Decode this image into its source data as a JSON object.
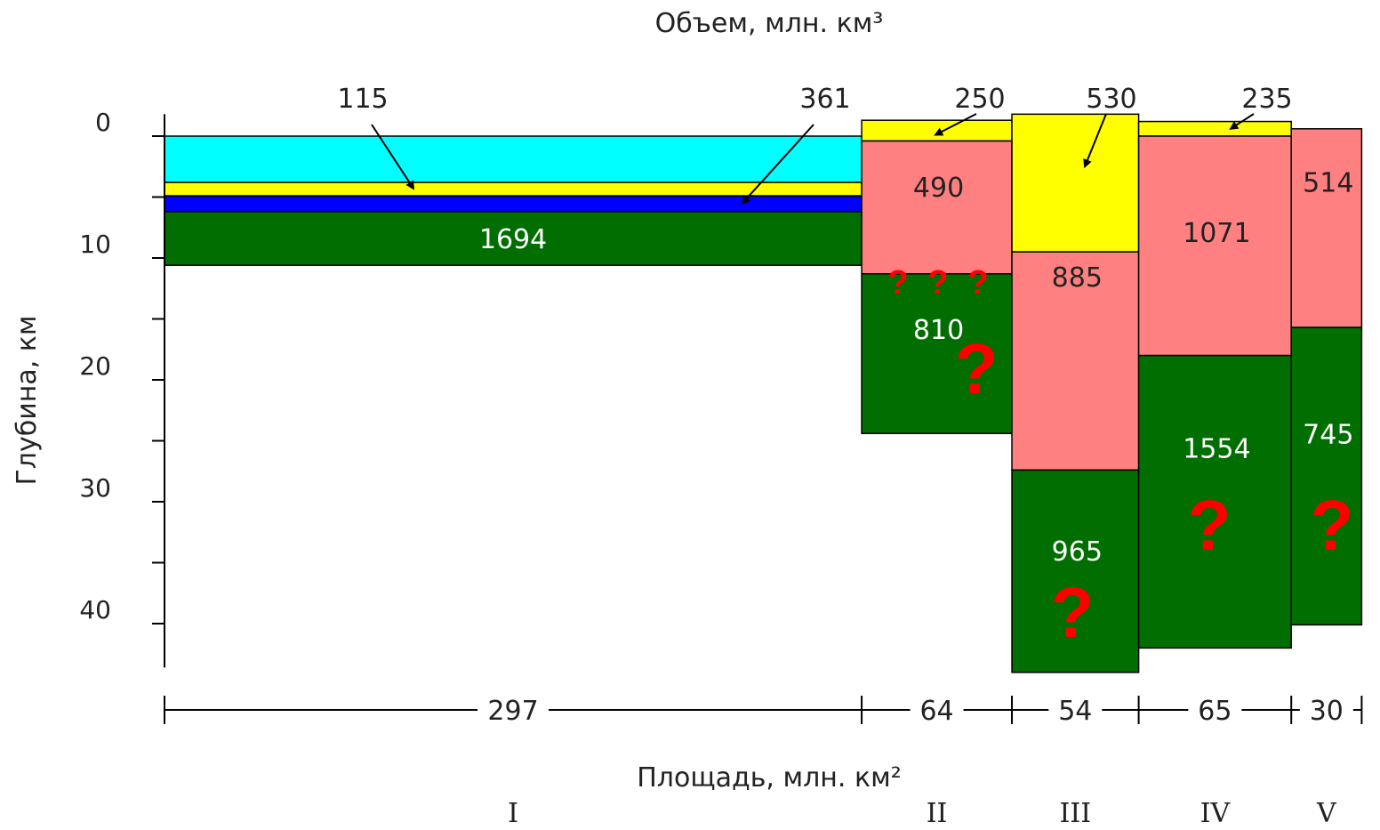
{
  "chart_data": {
    "type": "bar",
    "title": "Объем, млн. км³",
    "xlabel": "Площадь, млн. км²",
    "ylabel": "Глубина, км",
    "ylim": [
      0,
      43
    ],
    "y_ticks": [
      0,
      10,
      20,
      30,
      40
    ],
    "y_minor_ticks": [
      5,
      15,
      25,
      35
    ],
    "columns": [
      {
        "name": "I",
        "width": 297,
        "top": 0,
        "layers": [
          {
            "from": 0,
            "to": 3.8,
            "color": "#00ffff",
            "volume": ""
          },
          {
            "from": 3.8,
            "to": 4.9,
            "color": "#ffff00",
            "volume": "115"
          },
          {
            "from": 4.9,
            "to": 6.2,
            "color": "#0000ff",
            "volume": "361"
          },
          {
            "from": 6.2,
            "to": 10.6,
            "color": "#006e00",
            "volume": "1694"
          }
        ]
      },
      {
        "name": "II",
        "width": 64,
        "top": -1.3,
        "layers": [
          {
            "from": -1.3,
            "to": 0.4,
            "color": "#ffff00",
            "volume": "250"
          },
          {
            "from": 0.4,
            "to": 11.3,
            "color": "#ff8080",
            "volume": "490"
          },
          {
            "from": 11.3,
            "to": 24.4,
            "color": "#006e00",
            "volume": "810"
          }
        ]
      },
      {
        "name": "III",
        "width": 54,
        "top": -1.8,
        "layers": [
          {
            "from": -1.8,
            "to": 9.5,
            "color": "#ffff00",
            "volume": "530"
          },
          {
            "from": 9.5,
            "to": 27.4,
            "color": "#ff8080",
            "volume": "885"
          },
          {
            "from": 27.4,
            "to": 44.0,
            "color": "#006e00",
            "volume": "965"
          }
        ]
      },
      {
        "name": "IV",
        "width": 65,
        "top": -1.2,
        "layers": [
          {
            "from": -1.2,
            "to": 0.0,
            "color": "#ffff00",
            "volume": "235"
          },
          {
            "from": 0.0,
            "to": 18.0,
            "color": "#ff8080",
            "volume": "1071"
          },
          {
            "from": 18.0,
            "to": 42.0,
            "color": "#006e00",
            "volume": "1554"
          }
        ]
      },
      {
        "name": "V",
        "width": 30,
        "top": -0.6,
        "layers": [
          {
            "from": -0.6,
            "to": 15.7,
            "color": "#ff8080",
            "volume": "514"
          },
          {
            "from": 15.7,
            "to": 40.1,
            "color": "#006e00",
            "volume": "745"
          }
        ]
      }
    ],
    "annotations": [
      {
        "text": "115",
        "target_column": 0,
        "target_layer": 1
      },
      {
        "text": "361",
        "target_column": 0,
        "target_layer": 2
      },
      {
        "text": "250",
        "target_column": 1,
        "target_layer": 0
      },
      {
        "text": "530",
        "target_column": 2,
        "target_layer": 0
      },
      {
        "text": "235",
        "target_column": 3,
        "target_layer": 0
      }
    ],
    "question_mark": "?"
  }
}
